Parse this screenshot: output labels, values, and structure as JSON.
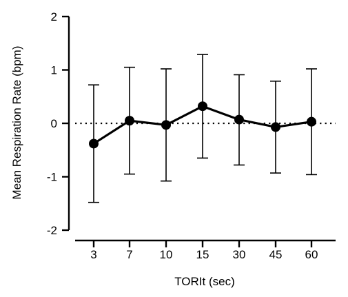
{
  "chart_data": {
    "type": "line",
    "xlabel": "TORIt (sec)",
    "ylabel": "Mean Respiration Rate (bpm)",
    "ylim": [
      -2,
      2
    ],
    "yticks": [
      -2,
      -1,
      0,
      1,
      2
    ],
    "categories": [
      "3",
      "7",
      "10",
      "15",
      "30",
      "45",
      "60"
    ],
    "series": [
      {
        "values": [
          -0.38,
          0.05,
          -0.03,
          0.32,
          0.07,
          -0.07,
          0.03
        ],
        "error_upper": [
          0.72,
          1.05,
          1.02,
          1.29,
          0.91,
          0.79,
          1.02
        ],
        "error_lower": [
          -1.48,
          -0.95,
          -1.08,
          -0.65,
          -0.78,
          -0.93,
          -0.96
        ]
      }
    ],
    "reference_line": {
      "y": 0,
      "style": "dotted"
    },
    "grid": false,
    "legend": "none",
    "colors": {
      "line": "#000000",
      "axis": "#000000",
      "background": "#ffffff"
    }
  }
}
